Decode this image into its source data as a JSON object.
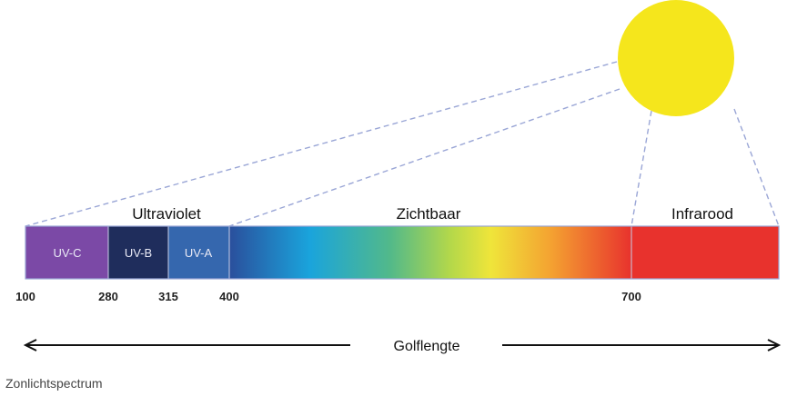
{
  "regions": {
    "ultraviolet": "Ultraviolet",
    "visible": "Zichtbaar",
    "infrared": "Infrarood"
  },
  "bands": {
    "uvc": "UV-C",
    "uvb": "UV-B",
    "uva": "UV-A"
  },
  "ticks": [
    "100",
    "280",
    "315",
    "400",
    "700"
  ],
  "axis_label": "Golflengte",
  "caption": "Zonlichtspectrum",
  "colors": {
    "sun": "#f5e61c",
    "uvc": "#7b49a6",
    "uvb": "#1f2d5c",
    "uva": "#3567ae",
    "infrared": "#e8322d",
    "dashed_lines": "#9aa6d6",
    "arrow": "#111111"
  }
}
